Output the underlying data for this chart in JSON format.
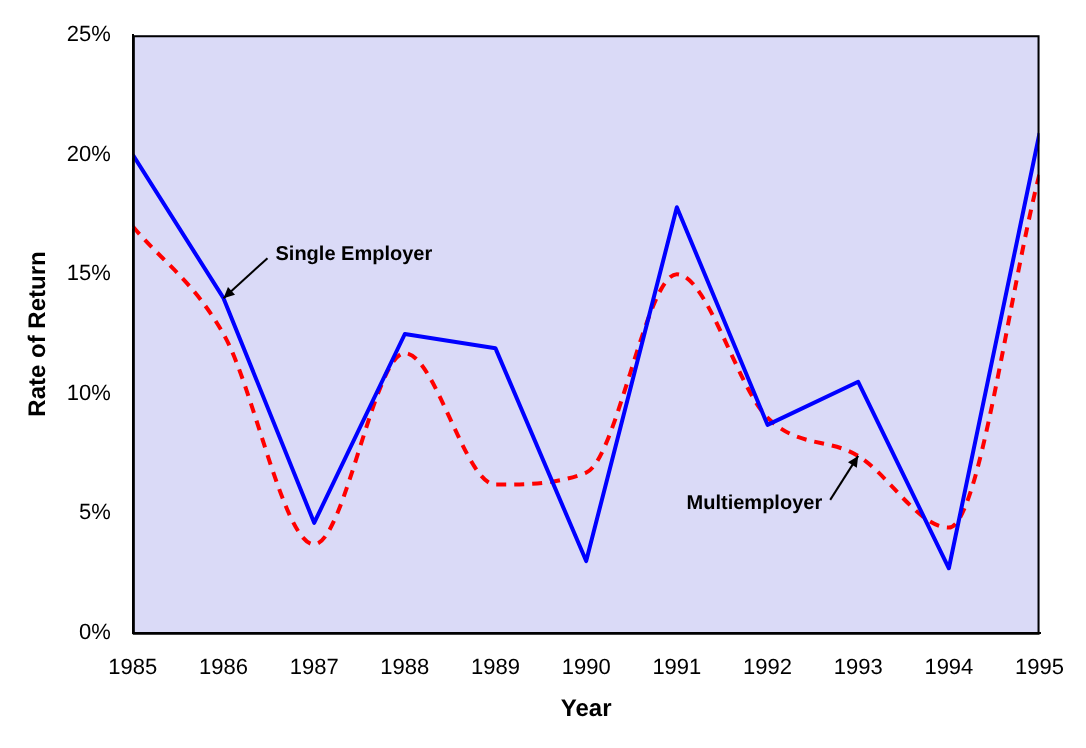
{
  "chart_data": {
    "type": "line",
    "xlabel": "Year",
    "ylabel": "Rate of Return",
    "x": [
      1985,
      1986,
      1987,
      1988,
      1989,
      1990,
      1991,
      1992,
      1993,
      1994,
      1995
    ],
    "xlim": [
      1985,
      1995
    ],
    "xticks": [
      1985,
      1986,
      1987,
      1988,
      1989,
      1990,
      1991,
      1992,
      1993,
      1994,
      1995
    ],
    "ylim": [
      0,
      25
    ],
    "yticks": [
      {
        "value": 0,
        "label": "0%"
      },
      {
        "value": 5,
        "label": "5%"
      },
      {
        "value": 10,
        "label": "10%"
      },
      {
        "value": 15,
        "label": "15%"
      },
      {
        "value": 20,
        "label": "20%"
      },
      {
        "value": 25,
        "label": "25%"
      }
    ],
    "series": [
      {
        "color": "#0000ff",
        "line_style": "solid",
        "values": [
          20,
          14,
          4.6,
          12.5,
          11.9,
          3.0,
          17.8,
          8.7,
          10.5,
          2.7,
          20.9
        ]
      },
      {
        "color": "#ff0000",
        "line_style": "dashed",
        "values": [
          17,
          12.5,
          3.7,
          11.7,
          6.2,
          6.7,
          15.0,
          9.0,
          7.4,
          4.4,
          19.2
        ]
      }
    ],
    "annotations": [
      {
        "text": "Single Employer",
        "x": 1986,
        "y": 14
      },
      {
        "text": "Multiemployer",
        "x": 1993,
        "y": 7.4
      }
    ],
    "marker": "none",
    "grid": false,
    "legend": false
  }
}
